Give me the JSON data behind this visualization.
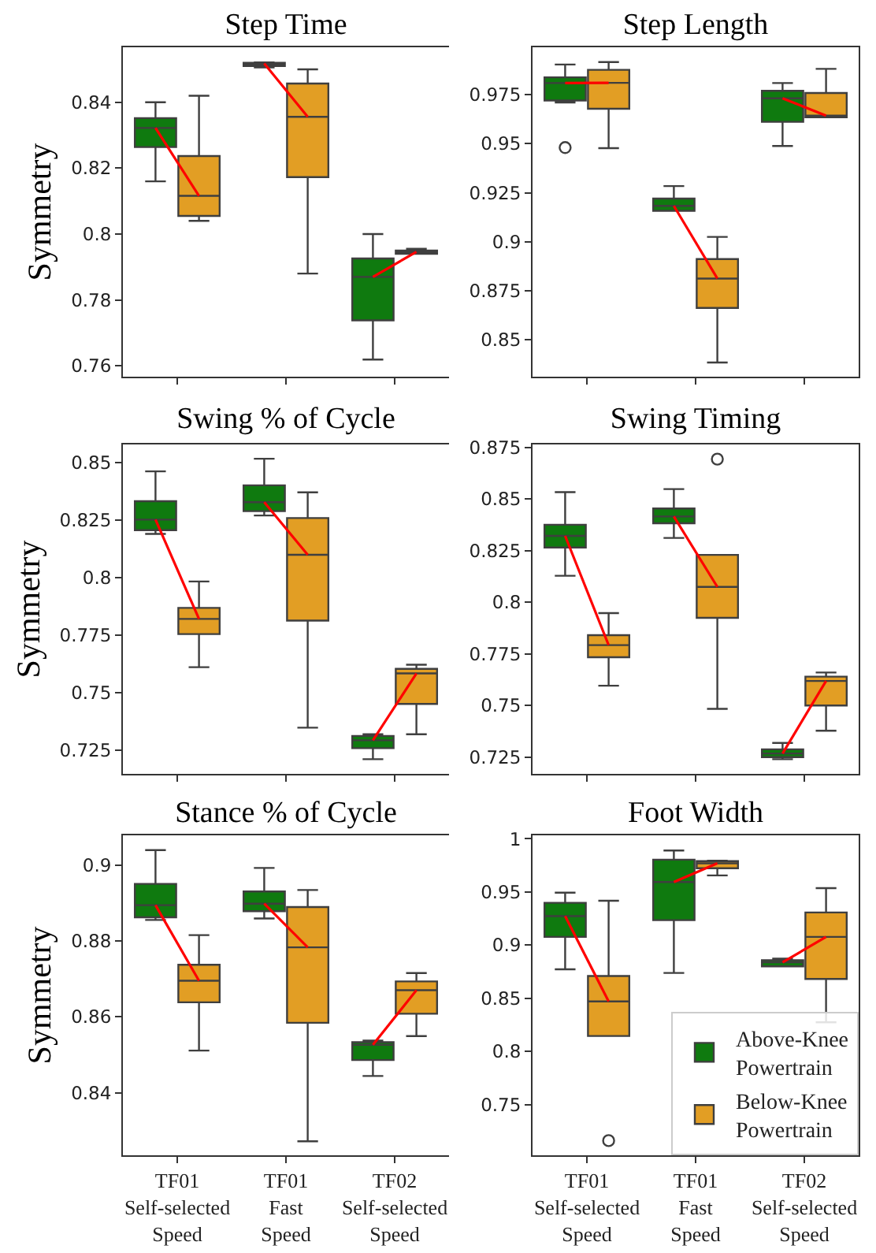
{
  "chart_data": [
    {
      "type": "box",
      "title": "Step Time",
      "ylabel": "Symmetry",
      "categories": [
        null,
        null,
        null
      ],
      "ylim": [
        0.7567,
        0.8567
      ],
      "yticks": [
        0.76,
        0.78,
        0.8,
        0.82,
        0.84
      ],
      "tick_labels": "y",
      "grid": false,
      "legend": false,
      "series": [
        {
          "color": "#0f7a0f",
          "boxes": [
            {
              "low": 0.816,
              "q1": 0.8264,
              "median": 0.8322,
              "q3": 0.8352,
              "high": 0.84
            },
            {
              "low": 0.8506,
              "q1": 0.851,
              "median": 0.8518,
              "q3": 0.852,
              "high": 0.8521
            },
            {
              "low": 0.7619,
              "q1": 0.7738,
              "median": 0.787,
              "q3": 0.7926,
              "high": 0.8
            }
          ]
        },
        {
          "color": "#e29e24",
          "boxes": [
            {
              "low": 0.804,
              "q1": 0.8055,
              "median": 0.8116,
              "q3": 0.8237,
              "high": 0.842
            },
            {
              "low": 0.788,
              "q1": 0.8173,
              "median": 0.8356,
              "q3": 0.8457,
              "high": 0.85
            },
            {
              "low": 0.794,
              "q1": 0.794,
              "median": 0.7946,
              "q3": 0.795,
              "high": 0.7955
            }
          ]
        }
      ]
    },
    {
      "type": "box",
      "title": "Step Length",
      "categories": [
        null,
        null,
        null
      ],
      "ylim": [
        0.8313,
        0.9991
      ],
      "yticks": [
        0.85,
        0.875,
        0.9,
        0.925,
        0.95,
        0.975
      ],
      "tick_labels": "y",
      "grid": false,
      "legend": false,
      "series": [
        {
          "color": "#0f7a0f",
          "boxes": [
            {
              "low": 0.971,
              "q1": 0.972,
              "median": 0.9809,
              "q3": 0.9838,
              "high": 0.9903,
              "outliers": [
                0.948
              ]
            },
            {
              "low": 0.9158,
              "q1": 0.9158,
              "median": 0.9183,
              "q3": 0.922,
              "high": 0.9284
            },
            {
              "low": 0.9488,
              "q1": 0.9611,
              "median": 0.9731,
              "q3": 0.9769,
              "high": 0.9809
            }
          ]
        },
        {
          "color": "#e29e24",
          "boxes": [
            {
              "low": 0.9477,
              "q1": 0.9678,
              "median": 0.981,
              "q3": 0.9876,
              "high": 0.9916
            },
            {
              "low": 0.8385,
              "q1": 0.8663,
              "median": 0.8813,
              "q3": 0.8912,
              "high": 0.9025
            },
            {
              "low": 0.9635,
              "q1": 0.9635,
              "median": 0.9643,
              "q3": 0.9758,
              "high": 0.9881
            }
          ]
        }
      ]
    },
    {
      "type": "box",
      "title": "Swing % of Cycle",
      "ylabel": "Symmetry",
      "categories": [
        null,
        null,
        null
      ],
      "ylim": [
        0.7147,
        0.858
      ],
      "yticks": [
        0.725,
        0.75,
        0.775,
        0.8,
        0.825,
        0.85
      ],
      "tick_labels": "y",
      "grid": false,
      "legend": false,
      "series": [
        {
          "color": "#0f7a0f",
          "boxes": [
            {
              "low": 0.8191,
              "q1": 0.8207,
              "median": 0.8253,
              "q3": 0.8333,
              "high": 0.8463
            },
            {
              "low": 0.8271,
              "q1": 0.829,
              "median": 0.8329,
              "q3": 0.8402,
              "high": 0.8518
            },
            {
              "low": 0.7211,
              "q1": 0.7259,
              "median": 0.7293,
              "q3": 0.7312,
              "high": 0.7319
            }
          ]
        },
        {
          "color": "#e29e24",
          "boxes": [
            {
              "low": 0.7611,
              "q1": 0.7755,
              "median": 0.7821,
              "q3": 0.7869,
              "high": 0.7984
            },
            {
              "low": 0.7348,
              "q1": 0.7814,
              "median": 0.81,
              "q3": 0.826,
              "high": 0.8372
            },
            {
              "low": 0.7319,
              "q1": 0.7451,
              "median": 0.7584,
              "q3": 0.7604,
              "high": 0.7622
            }
          ]
        }
      ]
    },
    {
      "type": "box",
      "title": "Swing Timing",
      "categories": [
        null,
        null,
        null
      ],
      "ylim": [
        0.7169,
        0.8765
      ],
      "yticks": [
        0.725,
        0.75,
        0.775,
        0.8,
        0.825,
        0.85,
        0.875
      ],
      "tick_labels": "y",
      "grid": false,
      "legend": false,
      "series": [
        {
          "color": "#0f7a0f",
          "boxes": [
            {
              "low": 0.8129,
              "q1": 0.8266,
              "median": 0.8322,
              "q3": 0.8376,
              "high": 0.8534
            },
            {
              "low": 0.8312,
              "q1": 0.8383,
              "median": 0.8416,
              "q3": 0.8455,
              "high": 0.8549
            },
            {
              "low": 0.724,
              "q1": 0.725,
              "median": 0.7268,
              "q3": 0.7288,
              "high": 0.7319
            }
          ]
        },
        {
          "color": "#e29e24",
          "boxes": [
            {
              "low": 0.7596,
              "q1": 0.7734,
              "median": 0.7793,
              "q3": 0.7841,
              "high": 0.7948
            },
            {
              "low": 0.7484,
              "q1": 0.7925,
              "median": 0.8075,
              "q3": 0.823,
              "high": 0.823,
              "outliers": [
                0.8694
              ]
            },
            {
              "low": 0.7378,
              "q1": 0.75,
              "median": 0.7619,
              "q3": 0.764,
              "high": 0.766
            }
          ]
        }
      ]
    },
    {
      "type": "box",
      "title": "Stance % of Cycle",
      "ylabel": "Symmetry",
      "categories": [
        "TF01 Self-selected Speed",
        "TF01 Fast Speed",
        "TF02 Self-selected Speed"
      ],
      "ylim": [
        0.8235,
        0.9078
      ],
      "yticks": [
        0.84,
        0.86,
        0.88,
        0.9
      ],
      "grid": false,
      "legend": false,
      "series": [
        {
          "color": "#0f7a0f",
          "boxes": [
            {
              "low": 0.8855,
              "q1": 0.8862,
              "median": 0.8894,
              "q3": 0.895,
              "high": 0.9039
            },
            {
              "low": 0.8859,
              "q1": 0.8878,
              "median": 0.8898,
              "q3": 0.893,
              "high": 0.8992
            },
            {
              "low": 0.8444,
              "q1": 0.8486,
              "median": 0.8526,
              "q3": 0.8533,
              "high": 0.8537
            }
          ]
        },
        {
          "color": "#e29e24",
          "boxes": [
            {
              "low": 0.8511,
              "q1": 0.8638,
              "median": 0.8695,
              "q3": 0.8737,
              "high": 0.8815
            },
            {
              "low": 0.8272,
              "q1": 0.8584,
              "median": 0.8783,
              "q3": 0.8889,
              "high": 0.8934
            },
            {
              "low": 0.8549,
              "q1": 0.8608,
              "median": 0.867,
              "q3": 0.8693,
              "high": 0.8715
            }
          ]
        }
      ]
    },
    {
      "type": "box",
      "title": "Foot Width",
      "categories": [
        "TF01 Self-selected Speed",
        "TF01 Fast Speed",
        "TF02 Self-selected Speed"
      ],
      "ylim": [
        0.7022,
        1.0033
      ],
      "yticks": [
        0.75,
        0.8,
        0.85,
        0.9,
        0.95,
        1.0
      ],
      "grid": false,
      "legend": "bottom right",
      "series": [
        {
          "name": "Above-Knee Powertrain",
          "color": "#0f7a0f",
          "boxes": [
            {
              "low": 0.8772,
              "q1": 0.9077,
              "median": 0.9273,
              "q3": 0.9398,
              "high": 0.9493
            },
            {
              "low": 0.8738,
              "q1": 0.9235,
              "median": 0.9594,
              "q3": 0.9804,
              "high": 0.989
            },
            {
              "low": 0.88,
              "q1": 0.88,
              "median": 0.8838,
              "q3": 0.8858,
              "high": 0.8872
            }
          ]
        },
        {
          "name": "Below-Knee Powertrain",
          "color": "#e29e24",
          "boxes": [
            {
              "low": 0.8145,
              "q1": 0.8145,
              "median": 0.847,
              "q3": 0.8709,
              "high": 0.9417,
              "outliers": [
                0.716
              ]
            },
            {
              "low": 0.9656,
              "q1": 0.9723,
              "median": 0.977,
              "q3": 0.979,
              "high": 0.9794
            },
            {
              "low": 0.8274,
              "q1": 0.8681,
              "median": 0.9077,
              "q3": 0.9307,
              "high": 0.9536
            }
          ]
        }
      ]
    }
  ]
}
